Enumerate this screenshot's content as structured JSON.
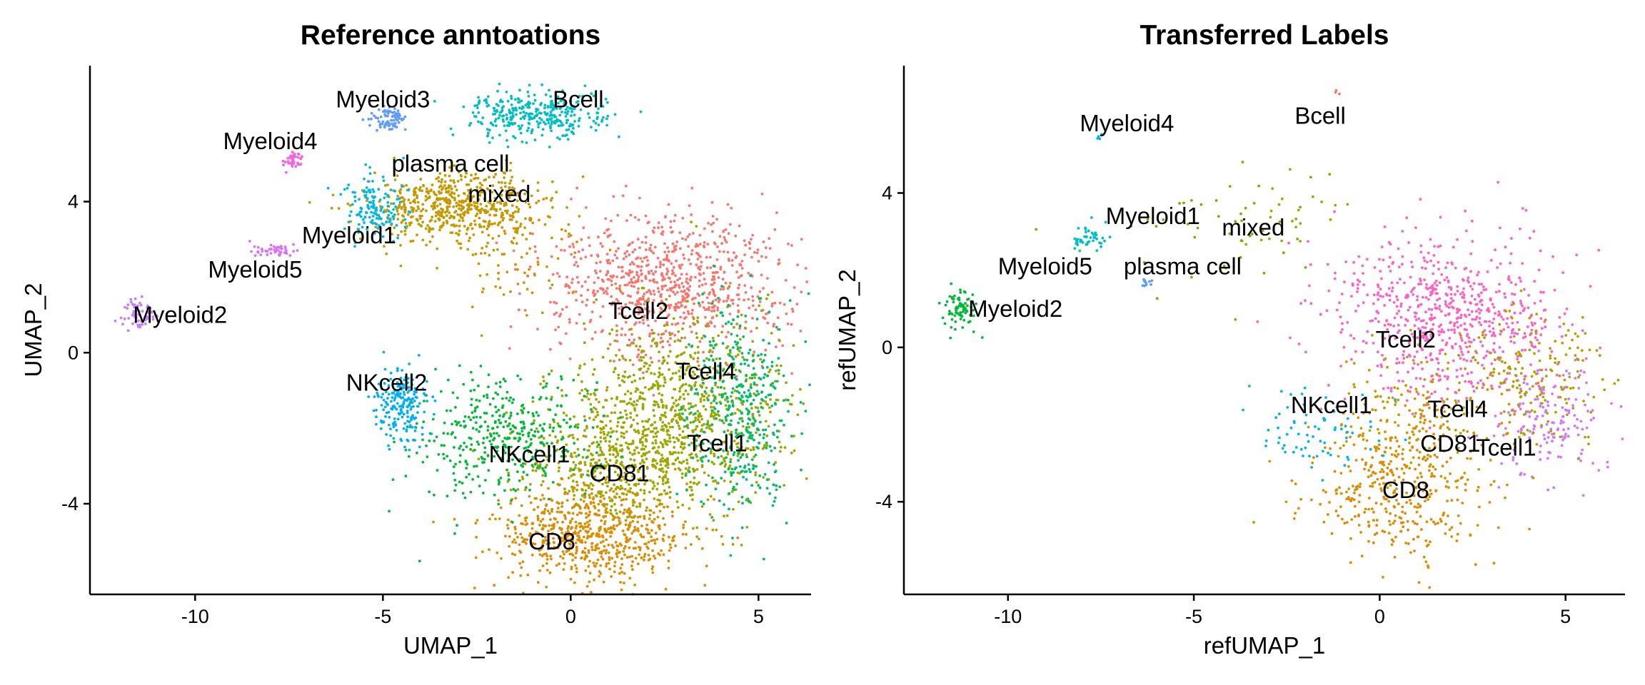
{
  "chart_data": [
    {
      "type": "scatter",
      "title": "Reference anntoations",
      "xlabel": "UMAP_1",
      "ylabel": "UMAP_2",
      "xlim": [
        -12.8,
        6.4
      ],
      "ylim": [
        -6.4,
        7.6
      ],
      "xticks": [
        -10,
        -5,
        0,
        5
      ],
      "yticks": [
        -4,
        0,
        4
      ],
      "grid": false,
      "legend": "none",
      "clusters": [
        {
          "label": "Tcell2",
          "color": "#F8766D",
          "cx": 2.6,
          "cy": 1.8,
          "sx": 1.6,
          "sy": 0.9,
          "n": 850,
          "label_x": 1.8,
          "label_y": 1.1
        },
        {
          "label": "Tcell4",
          "color": "#9BA800",
          "cx": 3.0,
          "cy": -1.5,
          "sx": 1.5,
          "sy": 1.3,
          "n": 850,
          "label_x": 3.6,
          "label_y": -0.5
        },
        {
          "label": "Tcell1",
          "color": "#00BE67",
          "cx": 4.5,
          "cy": -1.6,
          "sx": 0.7,
          "sy": 1.4,
          "n": 400,
          "label_x": 3.9,
          "label_y": -2.4
        },
        {
          "label": "CD81",
          "color": "#A3A500",
          "cx": 1.2,
          "cy": -3.0,
          "sx": 1.3,
          "sy": 0.8,
          "n": 450,
          "label_x": 1.3,
          "label_y": -3.2
        },
        {
          "label": "CD8",
          "color": "#DE8C00",
          "cx": 0.6,
          "cy": -4.8,
          "sx": 1.3,
          "sy": 0.6,
          "n": 650,
          "label_x": -0.5,
          "label_y": -5.0
        },
        {
          "label": "NKcell1",
          "color": "#00BA38",
          "cx": -1.8,
          "cy": -2.3,
          "sx": 1.2,
          "sy": 0.8,
          "n": 400,
          "label_x": -1.1,
          "label_y": -2.7
        },
        {
          "label": "NKcell2",
          "color": "#00B0F6",
          "cx": -4.5,
          "cy": -1.4,
          "sx": 0.35,
          "sy": 0.45,
          "n": 200,
          "label_x": -4.9,
          "label_y": -0.8
        },
        {
          "label": "plasma cell",
          "color": "#C49A00",
          "cx": -3.2,
          "cy": 3.9,
          "sx": 1.1,
          "sy": 0.45,
          "n": 550,
          "label_x": -3.2,
          "label_y": 5.0
        },
        {
          "label": "mixed",
          "color": "#D39200",
          "cx": -1.6,
          "cy": 3.0,
          "sx": 0.8,
          "sy": 0.9,
          "n": 120,
          "label_x": -1.9,
          "label_y": 4.2
        },
        {
          "label": "Bcell",
          "color": "#00BFC4",
          "cx": -0.9,
          "cy": 6.3,
          "sx": 0.85,
          "sy": 0.3,
          "n": 330,
          "label_x": 0.2,
          "label_y": 6.7
        },
        {
          "label": "Myeloid1",
          "color": "#00B8E7",
          "cx": -5.2,
          "cy": 3.9,
          "sx": 0.45,
          "sy": 0.4,
          "n": 140,
          "label_x": -5.9,
          "label_y": 3.1
        },
        {
          "label": "Myeloid3",
          "color": "#619CFF",
          "cx": -4.9,
          "cy": 6.2,
          "sx": 0.25,
          "sy": 0.15,
          "n": 80,
          "label_x": -5.0,
          "label_y": 6.7
        },
        {
          "label": "Myeloid4",
          "color": "#F564E3",
          "cx": -7.4,
          "cy": 5.1,
          "sx": 0.15,
          "sy": 0.1,
          "n": 40,
          "label_x": -8.0,
          "label_y": 5.6
        },
        {
          "label": "Myeloid5",
          "color": "#DB72FB",
          "cx": -7.8,
          "cy": 2.7,
          "sx": 0.3,
          "sy": 0.1,
          "n": 50,
          "label_x": -8.4,
          "label_y": 2.2
        },
        {
          "label": "Myeloid2",
          "color": "#C77CFF",
          "cx": -11.5,
          "cy": 1.0,
          "sx": 0.25,
          "sy": 0.2,
          "n": 55,
          "label_x": -10.4,
          "label_y": 1.0
        }
      ]
    },
    {
      "type": "scatter",
      "title": "Transferred Labels",
      "xlabel": "refUMAP_1",
      "ylabel": "refUMAP_2",
      "xlim": [
        -12.8,
        6.6
      ],
      "ylim": [
        -6.4,
        7.3
      ],
      "xticks": [
        -10,
        -5,
        0,
        5
      ],
      "yticks": [
        -4,
        0,
        4
      ],
      "grid": false,
      "legend": "none",
      "clusters": [
        {
          "label": "Tcell2",
          "color": "#FF61C3",
          "cx": 1.8,
          "cy": 0.8,
          "sx": 1.5,
          "sy": 1.1,
          "n": 700,
          "label_x": 0.7,
          "label_y": 0.2
        },
        {
          "label": "Tcell1",
          "color": "#D575FE",
          "cx": 4.6,
          "cy": -1.9,
          "sx": 0.8,
          "sy": 0.9,
          "n": 170,
          "label_x": 3.4,
          "label_y": -2.6
        },
        {
          "label": "Tcell4",
          "color": "#B79F00",
          "cx": 4.2,
          "cy": -0.8,
          "sx": 1.1,
          "sy": 1.0,
          "n": 200,
          "label_x": 2.1,
          "label_y": -1.6
        },
        {
          "label": "CD81",
          "color": "#C99A00",
          "cx": 0.8,
          "cy": -2.0,
          "sx": 1.0,
          "sy": 1.0,
          "n": 200,
          "label_x": 1.9,
          "label_y": -2.5
        },
        {
          "label": "CD8",
          "color": "#E38900",
          "cx": 0.4,
          "cy": -3.9,
          "sx": 1.2,
          "sy": 0.9,
          "n": 320,
          "label_x": 0.7,
          "label_y": -3.7
        },
        {
          "label": "NKcell1",
          "color": "#00B4F0",
          "cx": -1.8,
          "cy": -2.2,
          "sx": 0.9,
          "sy": 0.6,
          "n": 70,
          "label_x": -1.3,
          "label_y": -1.5
        },
        {
          "label": "Myeloid2",
          "color": "#00BA38",
          "cx": -11.3,
          "cy": 1.0,
          "sx": 0.25,
          "sy": 0.3,
          "n": 75,
          "label_x": -9.8,
          "label_y": 1.0
        },
        {
          "label": "Myeloid1",
          "color": "#00BFC4",
          "cx": -7.8,
          "cy": 2.8,
          "sx": 0.25,
          "sy": 0.2,
          "n": 45,
          "label_x": -6.1,
          "label_y": 3.4
        },
        {
          "label": "plasma cell",
          "color": "#7CAE00",
          "cx": -4.2,
          "cy": 3.0,
          "sx": 1.6,
          "sy": 0.8,
          "n": 40,
          "label_x": -5.3,
          "label_y": 2.1
        },
        {
          "label": "mixed",
          "color": "#A3A500",
          "cx": -2.5,
          "cy": 3.4,
          "sx": 0.9,
          "sy": 0.5,
          "n": 25,
          "label_x": -3.4,
          "label_y": 3.1
        },
        {
          "label": "Myeloid5",
          "color": "#619CFF",
          "cx": -6.3,
          "cy": 1.7,
          "sx": 0.1,
          "sy": 0.06,
          "n": 12,
          "label_x": -9.0,
          "label_y": 2.1
        },
        {
          "label": "Myeloid4",
          "color": "#00B8E7",
          "cx": -7.5,
          "cy": 5.4,
          "sx": 0.05,
          "sy": 0.05,
          "n": 4,
          "label_x": -6.8,
          "label_y": 5.8
        },
        {
          "label": "Bcell",
          "color": "#F8766D",
          "cx": -1.2,
          "cy": 6.6,
          "sx": 0.05,
          "sy": 0.05,
          "n": 3,
          "label_x": -1.6,
          "label_y": 6.0
        }
      ]
    }
  ]
}
